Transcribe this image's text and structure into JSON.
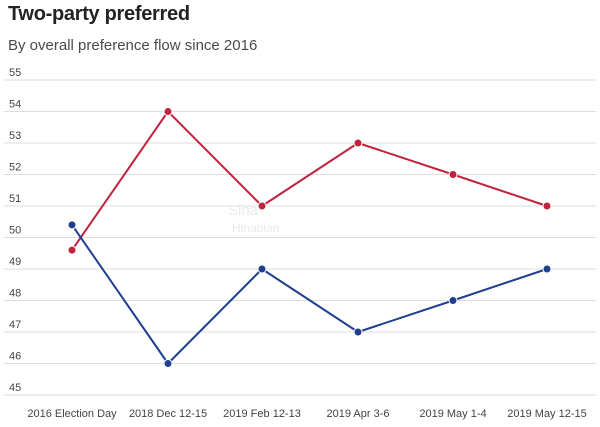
{
  "chart_data": {
    "type": "line",
    "title": "Two-party preferred",
    "subtitle": "By overall preference flow since 2016",
    "xlabel": "",
    "ylabel": "",
    "categories": [
      "2016 Election Day",
      "2018 Dec 12-15",
      "2019 Feb 12-13",
      "2019 Apr 3-6",
      "2019 May 1-4",
      "2019 May 12-15"
    ],
    "ylim": [
      45,
      55
    ],
    "yticks": [
      45,
      46,
      47,
      48,
      49,
      50,
      51,
      52,
      53,
      54,
      55
    ],
    "grid": "horizontal",
    "series": [
      {
        "color": "#c0233d",
        "values": [
          49.6,
          54,
          51,
          53,
          52,
          51
        ]
      },
      {
        "color": "#1f3f8f",
        "values": [
          50.4,
          46,
          49,
          47,
          48,
          49
        ]
      }
    ],
    "watermark": [
      "Sina",
      "Hinabian"
    ]
  }
}
